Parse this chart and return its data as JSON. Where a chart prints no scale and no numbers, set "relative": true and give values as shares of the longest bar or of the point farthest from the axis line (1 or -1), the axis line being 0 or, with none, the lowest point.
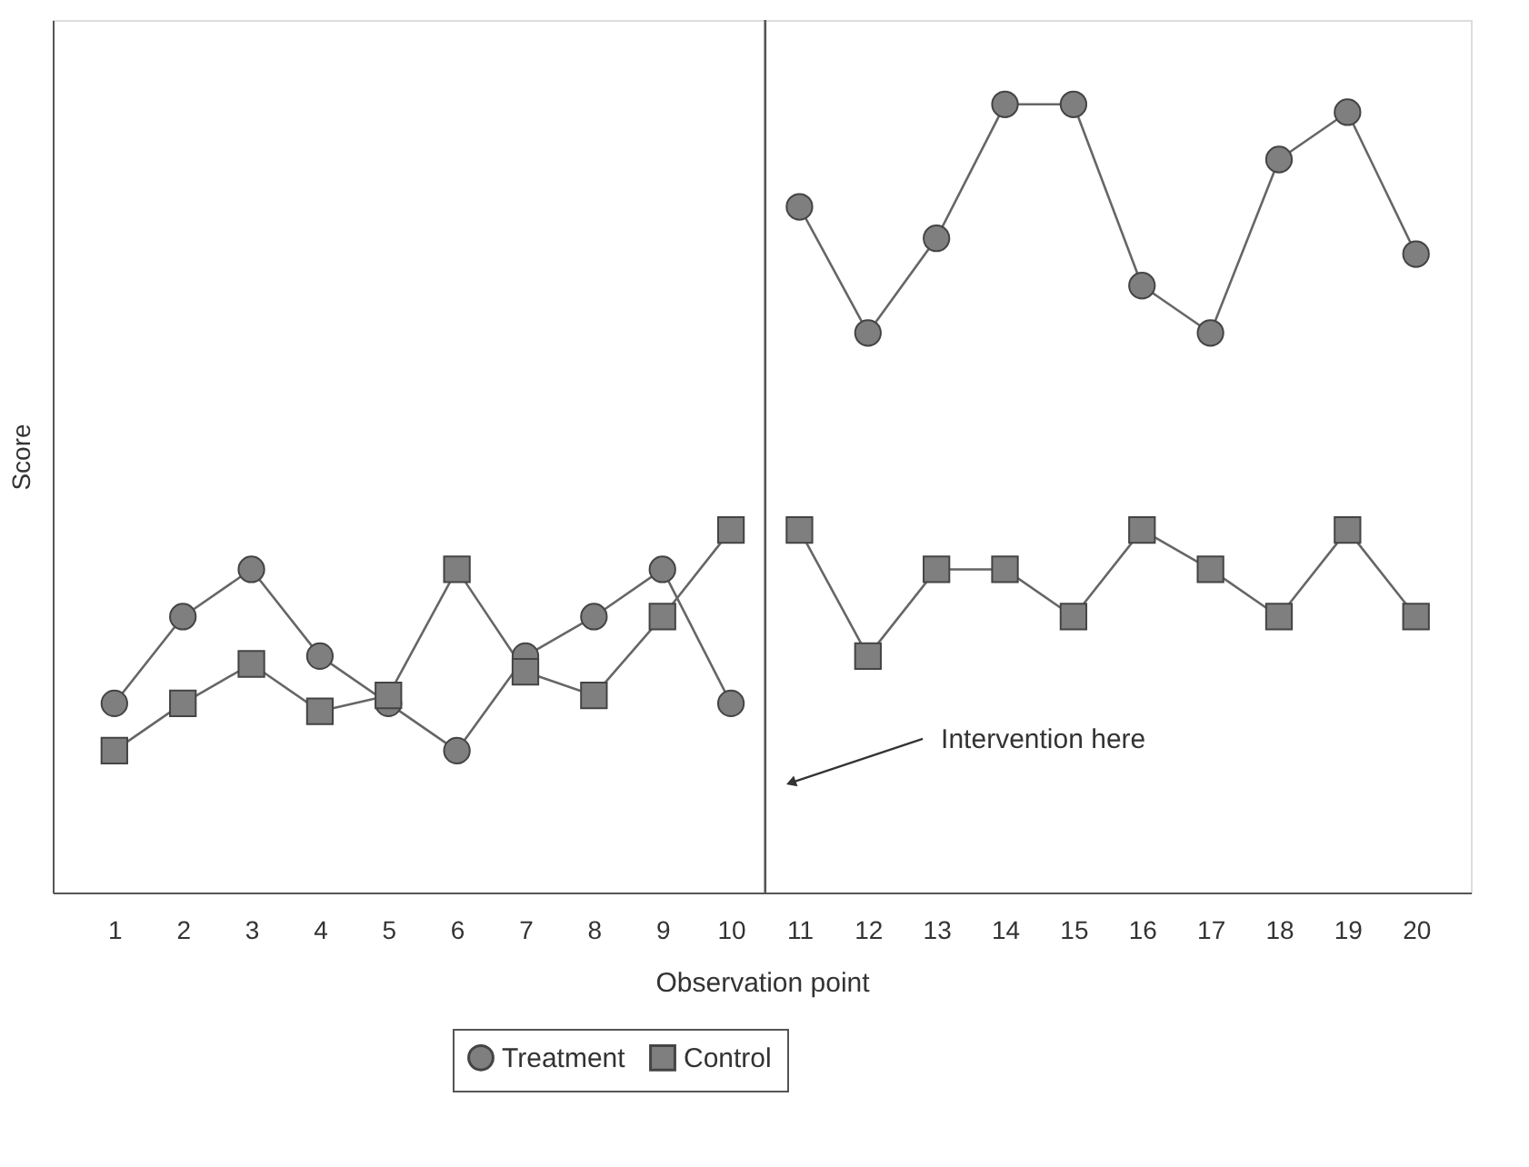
{
  "chart_data": {
    "type": "line",
    "relative": true,
    "xlabel": "Observation point",
    "ylabel": "Score",
    "x": [
      1,
      2,
      3,
      4,
      5,
      6,
      7,
      8,
      9,
      10,
      11,
      12,
      13,
      14,
      15,
      16,
      17,
      18,
      19,
      20
    ],
    "xlim": [
      0.1,
      20.8
    ],
    "xticks": [
      1,
      2,
      3,
      4,
      5,
      6,
      7,
      8,
      9,
      10,
      11,
      12,
      13,
      14,
      15,
      16,
      17,
      18,
      19,
      20
    ],
    "series": [
      {
        "name": "Treatment",
        "color": "#7f7f7f",
        "marker": "circle",
        "values": [
          0.24,
          0.35,
          0.41,
          0.3,
          0.24,
          0.18,
          0.3,
          0.35,
          0.41,
          0.24,
          0.87,
          0.71,
          0.83,
          1,
          1,
          0.77,
          0.71,
          0.93,
          0.99,
          0.81
        ]
      },
      {
        "name": "Control",
        "color": "#7f7f7f",
        "marker": "square",
        "values": [
          0.18,
          0.24,
          0.29,
          0.23,
          0.25,
          0.41,
          0.28,
          0.25,
          0.35,
          0.46,
          0.46,
          0.3,
          0.41,
          0.41,
          0.35,
          0.46,
          0.41,
          0.35,
          0.46,
          0.35
        ]
      }
    ],
    "ref_lines": [
      {
        "axis": "x",
        "value": 10.5,
        "color": "#555555"
      }
    ],
    "annotations": [
      {
        "text": "Intervention here",
        "x": 10.9,
        "y": 0.14
      }
    ],
    "grid": false,
    "legend": "bottom",
    "line_style": "solid"
  }
}
